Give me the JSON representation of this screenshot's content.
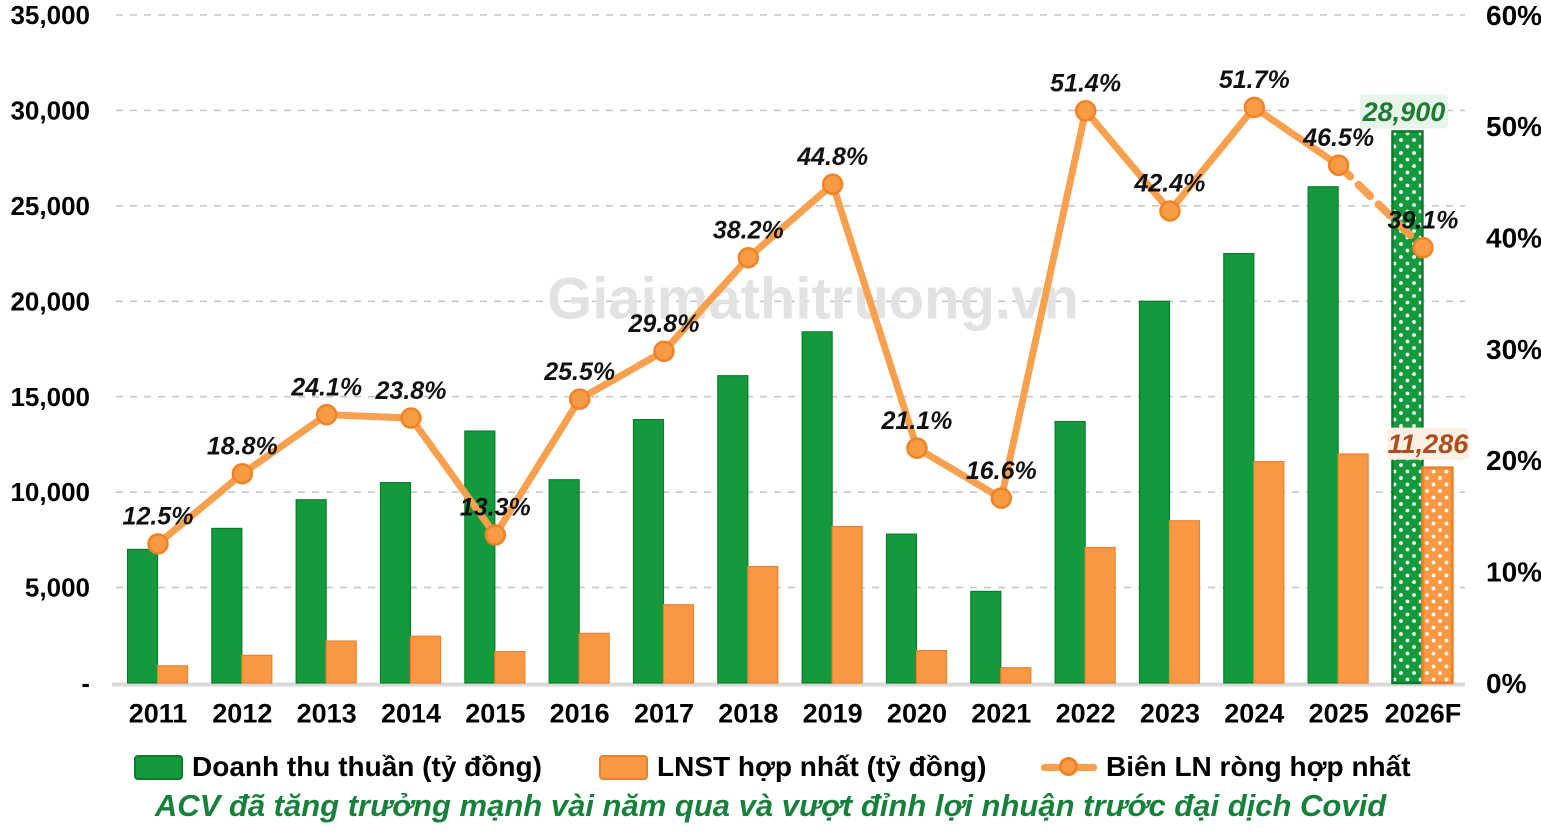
{
  "watermark": "Giaimathitruong.vn",
  "caption": "ACV đã tăng trưởng mạnh vài năm qua và vượt đỉnh lợi nhuận trước đại dịch Covid",
  "legend": {
    "revenue": "Doanh thu thuần (tỷ đồng)",
    "profit": "LNST hợp nhất (tỷ đồng)",
    "margin": "Biên LN ròng hợp nhất"
  },
  "colors": {
    "revenue_bar": "#149A3C",
    "revenue_bar_border": "#0C7C2C",
    "profit_bar": "#FA9843",
    "profit_bar_border": "#E9822F",
    "margin_line": "#F9A04E",
    "marker_fill": "#F99B43",
    "marker_stroke": "#F08228",
    "revenue_label_text": "#1E7A34",
    "revenue_label_bg": "#E7F4EA",
    "profit_label_text": "#A94E1C",
    "profit_label_bg": "#FCEFE4",
    "caption_text": "#17803A",
    "watermark_text": "#E2E2E2",
    "grid": "#C7C7C7",
    "baseline": "#D9D9D9",
    "axis_text": "#000000",
    "data_label_text": "#111111"
  },
  "chart_data": {
    "type": "combo-bar-line",
    "title": "",
    "categories": [
      "2011",
      "2012",
      "2013",
      "2014",
      "2015",
      "2016",
      "2017",
      "2018",
      "2019",
      "2020",
      "2021",
      "2022",
      "2023",
      "2024",
      "2025",
      "2026F"
    ],
    "series": [
      {
        "name": "Doanh thu thuần (tỷ đồng)",
        "type": "bar",
        "axis": "left",
        "values": [
          7000,
          8100,
          9600,
          10500,
          13200,
          10650,
          13800,
          16100,
          18400,
          7800,
          4800,
          13700,
          20000,
          22500,
          26000,
          28900
        ]
      },
      {
        "name": "LNST hợp nhất (tỷ đồng)",
        "type": "bar",
        "axis": "left",
        "values": [
          900,
          1450,
          2200,
          2450,
          1650,
          2600,
          4100,
          6100,
          8200,
          1700,
          800,
          7100,
          8500,
          11600,
          12000,
          11286
        ]
      },
      {
        "name": "Biên LN ròng hợp nhất",
        "type": "line",
        "axis": "right",
        "values": [
          12.5,
          18.8,
          24.1,
          23.8,
          13.3,
          25.5,
          29.8,
          38.2,
          44.8,
          21.1,
          16.6,
          51.4,
          42.4,
          51.7,
          46.5,
          39.1
        ],
        "labels": [
          "12.5%",
          "18.8%",
          "24.1%",
          "23.8%",
          "13.3%",
          "25.5%",
          "29.8%",
          "38.2%",
          "44.8%",
          "21.1%",
          "16.6%",
          "51.4%",
          "42.4%",
          "51.7%",
          "46.5%",
          "39.1%"
        ],
        "forecast_dashed_last_segment": true
      }
    ],
    "forecast_category": "2026F",
    "bar_value_labels": [
      {
        "series": "revenue",
        "category": "2026F",
        "text": "28,900"
      },
      {
        "series": "profit",
        "category": "2026F",
        "text": "11,286"
      }
    ],
    "left_axis": {
      "min": 0,
      "max": 35000,
      "tick_values": [
        35000,
        30000,
        25000,
        20000,
        15000,
        10000,
        5000,
        0
      ],
      "tick_labels": [
        "35,000",
        "30,000",
        "25,000",
        "20,000",
        "15,000",
        "10,000",
        "5,000",
        "-"
      ]
    },
    "right_axis": {
      "min": 0,
      "max": 60,
      "tick_values": [
        60,
        50,
        40,
        30,
        20,
        10,
        0
      ],
      "tick_labels": [
        "60%",
        "50%",
        "40%",
        "30%",
        "20%",
        "10%",
        "0%"
      ]
    },
    "grid": true,
    "legend_position": "bottom"
  }
}
